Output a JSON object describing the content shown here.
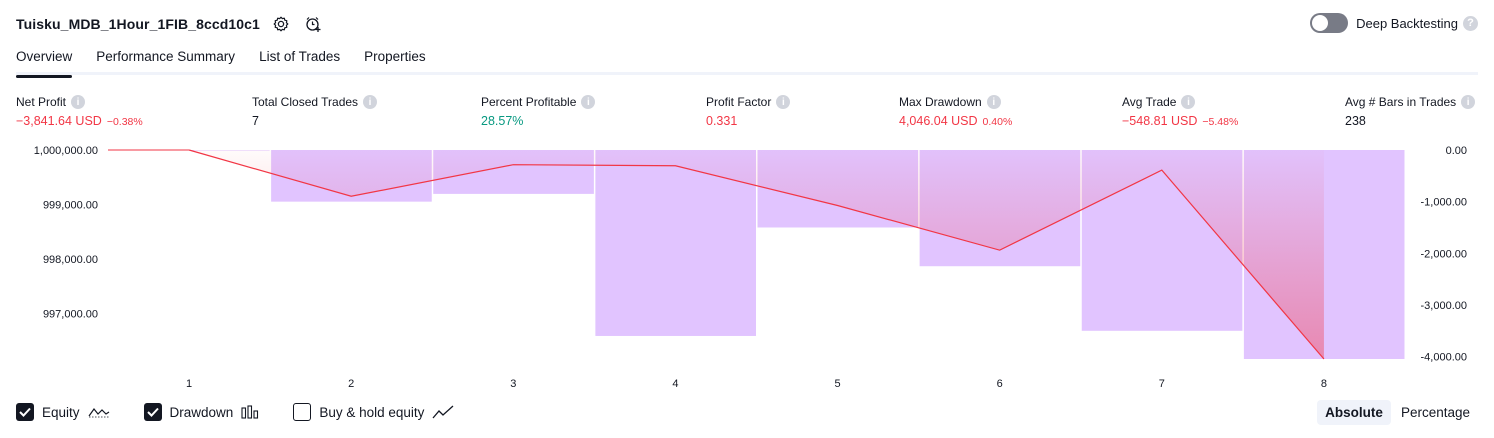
{
  "strategy": {
    "title": "Tuisku_MDB_1Hour_1FIB_8ccd10c1",
    "icons": [
      "settings-gear-icon",
      "alarm-add-icon"
    ]
  },
  "deep_backtesting": {
    "label": "Deep Backtesting",
    "enabled": false,
    "help_icon": "question-mark-icon"
  },
  "tabs": [
    {
      "label": "Overview",
      "active": true
    },
    {
      "label": "Performance Summary",
      "active": false
    },
    {
      "label": "List of Trades",
      "active": false
    },
    {
      "label": "Properties",
      "active": false
    }
  ],
  "metrics": [
    {
      "label": "Net Profit",
      "value": "−3,841.64 USD",
      "sub": "−0.38%",
      "tone": "neg"
    },
    {
      "label": "Total Closed Trades",
      "value": "7",
      "sub": "",
      "tone": "dark"
    },
    {
      "label": "Percent Profitable",
      "value": "28.57%",
      "sub": "",
      "tone": "pos"
    },
    {
      "label": "Profit Factor",
      "value": "0.331",
      "sub": "",
      "tone": "neg"
    },
    {
      "label": "Max Drawdown",
      "value": "4,046.04 USD",
      "sub": "0.40%",
      "tone": "neg"
    },
    {
      "label": "Avg Trade",
      "value": "−548.81 USD",
      "sub": "−5.48%",
      "tone": "neg"
    },
    {
      "label": "Avg # Bars in Trades",
      "value": "238",
      "sub": "",
      "tone": "dark"
    }
  ],
  "chart_data": {
    "type": "line",
    "x": [
      1,
      2,
      3,
      4,
      5,
      6,
      7,
      8
    ],
    "x_tick_labels": [
      "1",
      "2",
      "3",
      "4",
      "5",
      "6",
      "7",
      "8"
    ],
    "series": [
      {
        "name": "Equity",
        "kind": "line",
        "axis": "left",
        "color": "#f23645",
        "values": [
          1000000,
          999150,
          999730,
          999710,
          998980,
          998160,
          999630,
          996160
        ]
      },
      {
        "name": "Drawdown",
        "kind": "bar",
        "axis": "right",
        "color": "#e1c4ff",
        "values": [
          0,
          -1000,
          -850,
          -3600,
          -1500,
          -2250,
          -3500,
          -4046.04
        ]
      }
    ],
    "left_axis": {
      "ticks": [
        "1,000,000.00",
        "999,000.00",
        "998,000.00",
        "997,000.00"
      ],
      "ylim": [
        996160,
        1000000
      ]
    },
    "right_axis": {
      "ticks": [
        "0.00",
        "-1,000.00",
        "-2,000.00",
        "-3,000.00",
        "-4,000.00"
      ],
      "ylim": [
        -4046.04,
        0
      ]
    }
  },
  "legend": {
    "items": [
      {
        "label": "Equity",
        "checked": true,
        "glyph": "equity-line-icon"
      },
      {
        "label": "Drawdown",
        "checked": true,
        "glyph": "drawdown-bars-icon"
      },
      {
        "label": "Buy & hold equity",
        "checked": false,
        "glyph": "buy-hold-line-icon"
      }
    ]
  },
  "modes": [
    {
      "label": "Absolute",
      "active": true
    },
    {
      "label": "Percentage",
      "active": false
    }
  ]
}
